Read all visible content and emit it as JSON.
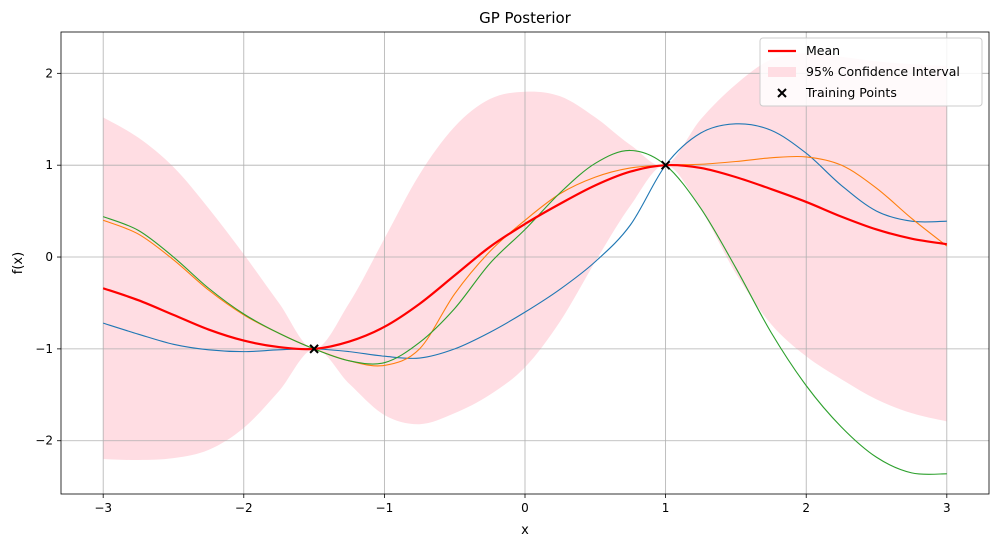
{
  "chart_data": {
    "type": "line",
    "title": "GP Posterior",
    "xlabel": "x",
    "ylabel": "f(x)",
    "xlim": [
      -3.3,
      3.3
    ],
    "ylim": [
      -2.58,
      2.45
    ],
    "xticks": [
      -3,
      -2,
      -1,
      0,
      1,
      2,
      3
    ],
    "yticks": [
      -2,
      -1,
      0,
      1,
      2
    ],
    "grid": true,
    "legend_position": "top-right",
    "legend": [
      {
        "label": "Mean",
        "kind": "line",
        "color": "#ff0000"
      },
      {
        "label": "95% Confidence Interval",
        "kind": "patch",
        "color": "#ffdde3"
      },
      {
        "label": "Training Points",
        "kind": "marker",
        "color": "#000000"
      }
    ],
    "x": [
      -3.0,
      -2.75,
      -2.5,
      -2.25,
      -2.0,
      -1.75,
      -1.5,
      -1.25,
      -1.0,
      -0.75,
      -0.5,
      -0.25,
      0.0,
      0.25,
      0.5,
      0.75,
      1.0,
      1.25,
      1.5,
      1.75,
      2.0,
      2.25,
      2.5,
      2.75,
      3.0
    ],
    "series": [
      {
        "name": "Mean",
        "role": "mean",
        "color": "#ff0000",
        "values": [
          -0.34,
          -0.47,
          -0.63,
          -0.79,
          -0.91,
          -0.98,
          -1.0,
          -0.92,
          -0.76,
          -0.51,
          -0.2,
          0.11,
          0.36,
          0.58,
          0.78,
          0.93,
          1.0,
          0.97,
          0.87,
          0.74,
          0.6,
          0.44,
          0.3,
          0.2,
          0.14
        ]
      },
      {
        "role": "ci_upper",
        "values": [
          1.52,
          1.3,
          0.98,
          0.53,
          0.03,
          -0.5,
          -1.0,
          -0.5,
          0.2,
          0.9,
          1.42,
          1.72,
          1.8,
          1.75,
          1.52,
          1.22,
          1.0,
          1.5,
          1.88,
          2.15,
          2.22,
          2.18,
          2.13,
          2.1,
          2.08
        ]
      },
      {
        "role": "ci_lower",
        "values": [
          -2.2,
          -2.21,
          -2.19,
          -2.1,
          -1.86,
          -1.46,
          -1.0,
          -1.38,
          -1.72,
          -1.82,
          -1.7,
          -1.5,
          -1.2,
          -0.7,
          -0.05,
          0.56,
          1.0,
          0.52,
          -0.18,
          -0.73,
          -1.08,
          -1.33,
          -1.55,
          -1.7,
          -1.79
        ]
      },
      {
        "role": "sample",
        "color": "#1f77b4",
        "values": [
          -0.72,
          -0.84,
          -0.95,
          -1.01,
          -1.03,
          -1.01,
          -1.0,
          -1.03,
          -1.08,
          -1.1,
          -1.0,
          -0.82,
          -0.6,
          -0.35,
          -0.05,
          0.35,
          1.0,
          1.35,
          1.45,
          1.38,
          1.13,
          0.78,
          0.5,
          0.39,
          0.39
        ]
      },
      {
        "role": "sample",
        "color": "#ff7f0e",
        "values": [
          0.4,
          0.25,
          -0.03,
          -0.36,
          -0.63,
          -0.83,
          -1.0,
          -1.13,
          -1.18,
          -1.0,
          -0.4,
          0.06,
          0.4,
          0.69,
          0.87,
          0.97,
          1.0,
          1.01,
          1.04,
          1.08,
          1.09,
          1.0,
          0.75,
          0.42,
          0.12
        ]
      },
      {
        "role": "sample",
        "color": "#2ca02c",
        "values": [
          0.44,
          0.29,
          0.0,
          -0.34,
          -0.62,
          -0.83,
          -1.0,
          -1.13,
          -1.15,
          -0.93,
          -0.56,
          -0.07,
          0.3,
          0.7,
          1.02,
          1.16,
          1.0,
          0.53,
          -0.12,
          -0.82,
          -1.4,
          -1.85,
          -2.18,
          -2.35,
          -2.36
        ]
      }
    ],
    "training_points": [
      {
        "x": -1.5,
        "y": -1.0
      },
      {
        "x": 1.0,
        "y": 1.0
      }
    ]
  }
}
